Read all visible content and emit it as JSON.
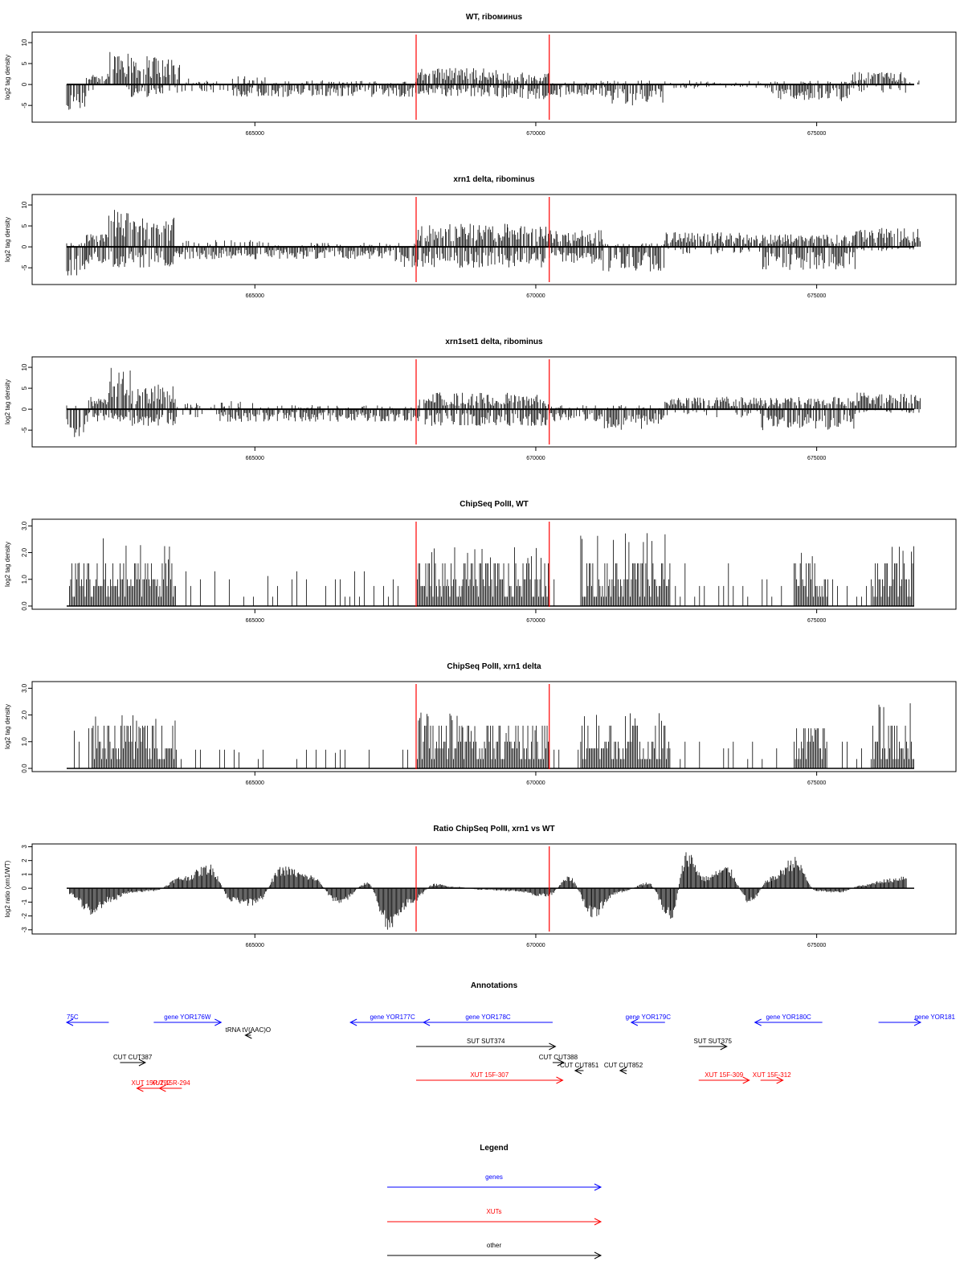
{
  "colors": {
    "genes": "#0000ff",
    "xuts": "#ff0000",
    "other": "#000000",
    "marker": "#ff0000",
    "bars": "#000000"
  },
  "chart_data": [
    {
      "type": "bar",
      "title": "WT, riboминus",
      "ylabel": "log2 tag density",
      "yticks": [
        -5,
        0,
        5,
        10
      ],
      "ylim": [
        -9,
        12.5
      ],
      "xlim": [
        661650,
        676850
      ],
      "xticks": [
        665000,
        670000,
        675000
      ],
      "xtick_labels": [
        "665000",
        "670000",
        "675000"
      ],
      "markers": [
        667870,
        670240
      ],
      "profile": [
        {
          "from": 661650,
          "to": 662000,
          "pos": 0,
          "neg": -7
        },
        {
          "from": 662000,
          "to": 662400,
          "pos": 3,
          "neg": -2
        },
        {
          "from": 662400,
          "to": 662800,
          "pos": 9,
          "neg": -2
        },
        {
          "from": 662800,
          "to": 663400,
          "pos": 7,
          "neg": -3
        },
        {
          "from": 663400,
          "to": 663700,
          "pos": 6,
          "neg": -2
        },
        {
          "from": 663700,
          "to": 664500,
          "pos": 1.5,
          "neg": -2
        },
        {
          "from": 664500,
          "to": 665200,
          "pos": 2,
          "neg": -3
        },
        {
          "from": 665200,
          "to": 667870,
          "pos": 1,
          "neg": -3
        },
        {
          "from": 667870,
          "to": 669300,
          "pos": 4,
          "neg": -3
        },
        {
          "from": 669300,
          "to": 670240,
          "pos": 3,
          "neg": -3.5
        },
        {
          "from": 670240,
          "to": 671300,
          "pos": 1,
          "neg": -3
        },
        {
          "from": 671300,
          "to": 672300,
          "pos": 1,
          "neg": -5
        },
        {
          "from": 672300,
          "to": 674200,
          "pos": 1,
          "neg": -1
        },
        {
          "from": 674200,
          "to": 675600,
          "pos": 1,
          "neg": -4
        },
        {
          "from": 675600,
          "to": 676600,
          "pos": 3,
          "neg": -2
        },
        {
          "from": 676600,
          "to": 676850,
          "pos": 1,
          "neg": 0
        }
      ],
      "mode": "signed"
    },
    {
      "type": "bar",
      "title": "xrn1 delta, ribominus",
      "ylabel": "log2 tag density",
      "yticks": [
        -5,
        0,
        5,
        10
      ],
      "ylim": [
        -9,
        12.5
      ],
      "xlim": [
        661650,
        676850
      ],
      "xticks": [
        665000,
        670000,
        675000
      ],
      "xtick_labels": [
        "665000",
        "670000",
        "675000"
      ],
      "markers": [
        667870,
        670240
      ],
      "profile": [
        {
          "from": 661650,
          "to": 662000,
          "pos": 1,
          "neg": -7
        },
        {
          "from": 662000,
          "to": 662400,
          "pos": 3,
          "neg": -4
        },
        {
          "from": 662400,
          "to": 662800,
          "pos": 9,
          "neg": -5
        },
        {
          "from": 662800,
          "to": 663600,
          "pos": 7,
          "neg": -5
        },
        {
          "from": 663600,
          "to": 664300,
          "pos": 1.5,
          "neg": -3
        },
        {
          "from": 664300,
          "to": 665200,
          "pos": 2,
          "neg": -3
        },
        {
          "from": 665200,
          "to": 667500,
          "pos": 1,
          "neg": -3
        },
        {
          "from": 667500,
          "to": 667870,
          "pos": 1,
          "neg": -5
        },
        {
          "from": 667870,
          "to": 669500,
          "pos": 5.5,
          "neg": -5
        },
        {
          "from": 669500,
          "to": 670240,
          "pos": 5,
          "neg": -5
        },
        {
          "from": 670240,
          "to": 671200,
          "pos": 4,
          "neg": -4
        },
        {
          "from": 671200,
          "to": 672300,
          "pos": 1,
          "neg": -6
        },
        {
          "from": 672300,
          "to": 674000,
          "pos": 3.5,
          "neg": -2
        },
        {
          "from": 674000,
          "to": 675700,
          "pos": 3,
          "neg": -6
        },
        {
          "from": 675700,
          "to": 676850,
          "pos": 4.5,
          "neg": -1
        }
      ],
      "mode": "signed"
    },
    {
      "type": "bar",
      "title": "xrn1set1 delta, ribominus",
      "ylabel": "log2 tag density",
      "yticks": [
        -5,
        0,
        5,
        10
      ],
      "ylim": [
        -9,
        12.5
      ],
      "xlim": [
        661650,
        676850
      ],
      "xticks": [
        665000,
        670000,
        675000
      ],
      "xtick_labels": [
        "665000",
        "670000",
        "675000"
      ],
      "markers": [
        667870,
        670240
      ],
      "profile": [
        {
          "from": 661650,
          "to": 662000,
          "pos": 1,
          "neg": -7
        },
        {
          "from": 662000,
          "to": 662400,
          "pos": 3,
          "neg": -3
        },
        {
          "from": 662400,
          "to": 662800,
          "pos": 10,
          "neg": -3
        },
        {
          "from": 662800,
          "to": 663600,
          "pos": 6,
          "neg": -4
        },
        {
          "from": 663600,
          "to": 664300,
          "pos": 1.5,
          "neg": -2
        },
        {
          "from": 664300,
          "to": 665200,
          "pos": 2,
          "neg": -3
        },
        {
          "from": 665200,
          "to": 667870,
          "pos": 1,
          "neg": -3
        },
        {
          "from": 667870,
          "to": 669500,
          "pos": 4,
          "neg": -4
        },
        {
          "from": 669500,
          "to": 670240,
          "pos": 3.5,
          "neg": -4
        },
        {
          "from": 670240,
          "to": 671200,
          "pos": 1,
          "neg": -3
        },
        {
          "from": 671200,
          "to": 672300,
          "pos": 1,
          "neg": -5
        },
        {
          "from": 672300,
          "to": 674000,
          "pos": 3,
          "neg": -2
        },
        {
          "from": 674000,
          "to": 675700,
          "pos": 3,
          "neg": -5
        },
        {
          "from": 675700,
          "to": 676850,
          "pos": 4,
          "neg": -1
        }
      ],
      "mode": "signed"
    },
    {
      "type": "bar",
      "title": "ChipSeq PolII, WT",
      "ylabel": "log2 tag density",
      "yticks": [
        0.0,
        1.0,
        2.0,
        3.0
      ],
      "ytick_labels": [
        "0.0",
        "1.0",
        "2.0",
        "3.0"
      ],
      "ylim": [
        -0.12,
        3.25
      ],
      "xlim": [
        661650,
        676850
      ],
      "xticks": [
        665000,
        670000,
        675000
      ],
      "xtick_labels": [
        "665000",
        "670000",
        "675000"
      ],
      "markers": [
        667870,
        670240
      ],
      "profile": [
        {
          "from": 661700,
          "to": 662000,
          "pos": 2.0
        },
        {
          "from": 662000,
          "to": 662600,
          "pos": 2.8
        },
        {
          "from": 662600,
          "to": 663600,
          "pos": 2.3
        },
        {
          "from": 663600,
          "to": 667800,
          "pos": 1.3,
          "sparse": true
        },
        {
          "from": 667870,
          "to": 668700,
          "pos": 2.4
        },
        {
          "from": 668700,
          "to": 670240,
          "pos": 2.2
        },
        {
          "from": 670240,
          "to": 670800,
          "pos": 1.0,
          "sparse": true
        },
        {
          "from": 670800,
          "to": 672400,
          "pos": 2.8
        },
        {
          "from": 672400,
          "to": 674600,
          "pos": 1.8,
          "sparse": true
        },
        {
          "from": 674600,
          "to": 675200,
          "pos": 2.0
        },
        {
          "from": 675200,
          "to": 676000,
          "pos": 1.5,
          "sparse": true
        },
        {
          "from": 676000,
          "to": 676750,
          "pos": 2.6
        }
      ],
      "mode": "positive"
    },
    {
      "type": "bar",
      "title": "ChipSeq PolII, xrn1 delta",
      "ylabel": "log2 tag density",
      "yticks": [
        0.0,
        1.0,
        2.0,
        3.0
      ],
      "ytick_labels": [
        "0.0",
        "1.0",
        "2.0",
        "3.0"
      ],
      "ylim": [
        -0.12,
        3.25
      ],
      "xlim": [
        661650,
        676850
      ],
      "xticks": [
        665000,
        670000,
        675000
      ],
      "xtick_labels": [
        "665000",
        "670000",
        "675000"
      ],
      "markers": [
        667870,
        670240
      ],
      "profile": [
        {
          "from": 661700,
          "to": 662100,
          "pos": 1.5,
          "sparse": true
        },
        {
          "from": 662100,
          "to": 663600,
          "pos": 2.0
        },
        {
          "from": 663600,
          "to": 667800,
          "pos": 0.7,
          "sparse": true
        },
        {
          "from": 667870,
          "to": 668700,
          "pos": 2.1
        },
        {
          "from": 668700,
          "to": 670240,
          "pos": 1.7
        },
        {
          "from": 670240,
          "to": 670800,
          "pos": 0.7,
          "sparse": true
        },
        {
          "from": 670800,
          "to": 672400,
          "pos": 2.2
        },
        {
          "from": 672400,
          "to": 674600,
          "pos": 1.0,
          "sparse": true
        },
        {
          "from": 674600,
          "to": 675200,
          "pos": 1.5
        },
        {
          "from": 675200,
          "to": 676000,
          "pos": 1.0,
          "sparse": true
        },
        {
          "from": 676000,
          "to": 676750,
          "pos": 2.5
        }
      ],
      "mode": "positive"
    },
    {
      "type": "area",
      "title": "Ratio ChipSeq PolII, xrn1 vs WT",
      "ylabel": "log2 ratio (xrn1/WT)",
      "yticks": [
        -3,
        -2,
        -1,
        0,
        1,
        2,
        3
      ],
      "ylim": [
        -3.3,
        3.2
      ],
      "xlim": [
        661650,
        676850
      ],
      "xticks": [
        665000,
        670000,
        675000
      ],
      "xtick_labels": [
        "665000",
        "670000",
        "675000"
      ],
      "markers": [
        667870,
        670240
      ],
      "x": [
        661700,
        662100,
        662400,
        662800,
        663200,
        663700,
        664200,
        664600,
        665000,
        665500,
        666000,
        666500,
        667000,
        667400,
        667800,
        668200,
        668600,
        669000,
        669600,
        670200,
        670600,
        671000,
        671500,
        672000,
        672400,
        672700,
        673000,
        673400,
        673800,
        674200,
        674600,
        675000,
        675400,
        675800,
        676200,
        676600
      ],
      "y": [
        -0.5,
        -1.8,
        -1.0,
        -0.3,
        -0.2,
        0.8,
        1.6,
        -1.0,
        -1.2,
        1.5,
        0.9,
        -1.1,
        0.4,
        -2.9,
        -1.0,
        0.3,
        0.1,
        -0.1,
        -0.2,
        -0.6,
        0.8,
        -2.0,
        -0.3,
        0.4,
        -2.2,
        2.6,
        0.8,
        1.5,
        -1.0,
        0.8,
        2.1,
        -0.2,
        -0.3,
        0.2,
        0.6,
        0.9
      ]
    }
  ],
  "annotations": {
    "title": "Annotations",
    "xlim": [
      661650,
      676850
    ],
    "features": [
      {
        "label": "75C",
        "from": 661650,
        "to": 662400,
        "dir": "left",
        "type": "genes",
        "row": 0
      },
      {
        "label": "gene YOR176W",
        "from": 663200,
        "to": 664400,
        "dir": "right",
        "type": "genes",
        "row": 0
      },
      {
        "label": "gene YOR177C",
        "from": 666700,
        "to": 668200,
        "dir": "left",
        "type": "genes",
        "row": 0
      },
      {
        "label": "gene YOR178C",
        "from": 668000,
        "to": 670300,
        "dir": "left",
        "type": "genes",
        "row": 0
      },
      {
        "label": "gene YOR179C",
        "from": 671700,
        "to": 672300,
        "dir": "left",
        "type": "genes",
        "row": 0
      },
      {
        "label": "gene YOR180C",
        "from": 673900,
        "to": 675100,
        "dir": "left",
        "type": "genes",
        "row": 0
      },
      {
        "label": "gene YOR181",
        "from": 676100,
        "to": 676850,
        "dir": "right",
        "type": "genes",
        "row": 0
      },
      {
        "label": "tRNA tV(AAC)O",
        "from": 664830,
        "to": 664930,
        "dir": "left",
        "type": "other",
        "row": 1
      },
      {
        "label": "SUT SUT374",
        "from": 667870,
        "to": 670350,
        "dir": "right",
        "type": "other",
        "row": 2
      },
      {
        "label": "SUT SUT375",
        "from": 672900,
        "to": 673400,
        "dir": "right",
        "type": "other",
        "row": 2
      },
      {
        "label": "CUT CUT387",
        "from": 662600,
        "to": 663050,
        "dir": "right",
        "type": "other",
        "row": 3
      },
      {
        "label": "CUT CUT388",
        "from": 670300,
        "to": 670500,
        "dir": "right",
        "type": "other",
        "row": 3
      },
      {
        "label": "CUT CUT851",
        "from": 670700,
        "to": 670850,
        "dir": "left",
        "type": "other",
        "row": 4
      },
      {
        "label": "CUT CUT852",
        "from": 671500,
        "to": 671620,
        "dir": "left",
        "type": "other",
        "row": 4
      },
      {
        "label": "XUT 15F-307",
        "from": 667870,
        "to": 670480,
        "dir": "right",
        "type": "xuts",
        "row": 5
      },
      {
        "label": "XUT 15F-309",
        "from": 672900,
        "to": 673800,
        "dir": "right",
        "type": "xuts",
        "row": 5
      },
      {
        "label": "XUT 15F-312",
        "from": 674000,
        "to": 674400,
        "dir": "right",
        "type": "xuts",
        "row": 5
      },
      {
        "label": "XUT 15R-292",
        "from": 662900,
        "to": 663400,
        "dir": "left",
        "type": "xuts",
        "row": 6
      },
      {
        "label": "XUT 15R-294",
        "from": 663300,
        "to": 663700,
        "dir": "left",
        "type": "xuts",
        "row": 6
      }
    ]
  },
  "legend": {
    "title": "Legend",
    "items": [
      {
        "label": "genes",
        "type": "genes"
      },
      {
        "label": "XUTs",
        "type": "xuts"
      },
      {
        "label": "other",
        "type": "other"
      }
    ]
  }
}
